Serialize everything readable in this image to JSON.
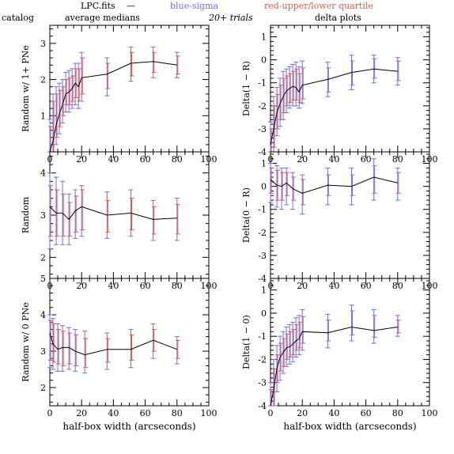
{
  "header": {
    "file_label": "LPC.fits",
    "dash": "—",
    "blue_label": "blue-sigma",
    "red_label": "red-upper/lower quartile",
    "catalog_label": "catalog",
    "avg_label": "average medians",
    "trials_label": "20+ trials",
    "delta_label": "delta plots"
  },
  "colors": {
    "line": "#000000",
    "sigma": "#6f6fe8",
    "quartile": "#e05a5a"
  },
  "xaxis": {
    "label": "half-box width (arcseconds)",
    "ticks": [
      0,
      20,
      40,
      60,
      80,
      100
    ],
    "range": [
      0,
      100
    ]
  },
  "chart_data": [
    {
      "type": "line",
      "ylabel": "Random w/ 1+ PNe",
      "ylim": [
        0,
        3.5
      ],
      "yticks": [
        1,
        2,
        3
      ],
      "x": [
        0,
        2,
        4,
        6,
        8,
        10,
        12,
        14,
        16,
        18,
        20,
        36,
        51,
        65,
        80
      ],
      "y": [
        0.0,
        0.3,
        0.75,
        1.05,
        1.3,
        1.6,
        1.65,
        1.75,
        1.9,
        1.8,
        2.05,
        2.15,
        2.45,
        2.5,
        2.4
      ],
      "sigma": [
        [
          0,
          0.9
        ],
        [
          0,
          1.6
        ],
        [
          0.2,
          1.8
        ],
        [
          0.5,
          1.9
        ],
        [
          0.8,
          2.0
        ],
        [
          1.1,
          2.2
        ],
        [
          1.1,
          2.25
        ],
        [
          1.2,
          2.3
        ],
        [
          1.3,
          2.45
        ],
        [
          1.2,
          2.45
        ],
        [
          1.4,
          2.75
        ],
        [
          1.55,
          2.6
        ],
        [
          1.95,
          2.9
        ],
        [
          2.05,
          2.9
        ],
        [
          2.05,
          2.75
        ]
      ],
      "quartile": [
        [
          0,
          0.7
        ],
        [
          0,
          1.4
        ],
        [
          0.4,
          1.6
        ],
        [
          0.7,
          1.7
        ],
        [
          1.0,
          1.8
        ],
        [
          1.3,
          2.0
        ],
        [
          1.3,
          2.05
        ],
        [
          1.4,
          2.1
        ],
        [
          1.5,
          2.3
        ],
        [
          1.4,
          2.3
        ],
        [
          1.6,
          2.6
        ],
        [
          1.75,
          2.45
        ],
        [
          2.1,
          2.75
        ],
        [
          2.2,
          2.75
        ],
        [
          2.15,
          2.65
        ]
      ]
    },
    {
      "type": "line",
      "ylabel": "Random",
      "ylim": [
        1.5,
        4.5
      ],
      "yticks": [
        2,
        3,
        4
      ],
      "x": [
        0,
        4,
        8,
        12,
        16,
        20,
        36,
        51,
        65,
        80
      ],
      "y": [
        3.2,
        3.05,
        3.05,
        2.9,
        3.1,
        3.2,
        3.0,
        3.05,
        2.9,
        2.93
      ],
      "sigma": [
        [
          2.2,
          4.0
        ],
        [
          2.3,
          3.9
        ],
        [
          2.3,
          3.8
        ],
        [
          2.3,
          3.5
        ],
        [
          2.45,
          3.6
        ],
        [
          2.5,
          3.7
        ],
        [
          2.45,
          3.55
        ],
        [
          2.5,
          3.6
        ],
        [
          2.4,
          3.35
        ],
        [
          2.4,
          3.4
        ]
      ],
      "quartile": [
        [
          2.5,
          3.7
        ],
        [
          2.5,
          3.6
        ],
        [
          2.5,
          3.5
        ],
        [
          2.5,
          3.3
        ],
        [
          2.6,
          3.45
        ],
        [
          2.65,
          3.6
        ],
        [
          2.6,
          3.35
        ],
        [
          2.65,
          3.4
        ],
        [
          2.55,
          3.2
        ],
        [
          2.55,
          3.25
        ]
      ]
    },
    {
      "type": "line",
      "ylabel": "Random w/ 0 PNe",
      "ylim": [
        1.5,
        5
      ],
      "yticks": [
        2,
        3,
        4,
        5
      ],
      "x": [
        0,
        2,
        5,
        8,
        12,
        16,
        22,
        36,
        51,
        65,
        80
      ],
      "y": [
        3.5,
        3.2,
        3.05,
        3.1,
        3.1,
        3.0,
        2.9,
        3.05,
        3.05,
        3.3,
        3.05
      ],
      "sigma": [
        [
          2.55,
          4.0
        ],
        [
          2.5,
          3.9
        ],
        [
          2.45,
          3.75
        ],
        [
          2.45,
          3.7
        ],
        [
          2.5,
          3.65
        ],
        [
          2.45,
          3.6
        ],
        [
          2.4,
          3.55
        ],
        [
          2.5,
          3.5
        ],
        [
          2.55,
          3.6
        ],
        [
          2.8,
          3.75
        ],
        [
          2.65,
          3.4
        ]
      ],
      "quartile": [
        [
          2.75,
          3.85
        ],
        [
          2.7,
          3.75
        ],
        [
          2.65,
          3.6
        ],
        [
          2.6,
          3.55
        ],
        [
          2.65,
          3.5
        ],
        [
          2.6,
          3.45
        ],
        [
          2.55,
          3.35
        ],
        [
          2.7,
          3.35
        ],
        [
          2.75,
          3.45
        ],
        [
          3.0,
          3.6
        ],
        [
          2.8,
          3.3
        ]
      ]
    },
    {
      "type": "line",
      "ylabel": "Delta(1 − R)",
      "ylim": [
        -4,
        1.5
      ],
      "yticks": [
        -4,
        -3,
        -2,
        -1,
        0,
        1
      ],
      "x": [
        0,
        2,
        4,
        6,
        8,
        10,
        12,
        14,
        16,
        18,
        20,
        36,
        51,
        65,
        80
      ],
      "y": [
        -3.7,
        -3.0,
        -2.3,
        -1.9,
        -1.6,
        -1.35,
        -1.25,
        -1.15,
        -1.2,
        -1.4,
        -1.1,
        -0.85,
        -0.55,
        -0.4,
        -0.5
      ],
      "sigma": [
        [
          -4,
          -2.7
        ],
        [
          -4,
          -1.6
        ],
        [
          -3.3,
          -1.2
        ],
        [
          -2.9,
          -0.8
        ],
        [
          -2.6,
          -0.5
        ],
        [
          -2.3,
          -0.4
        ],
        [
          -2.1,
          -0.3
        ],
        [
          -2.0,
          -0.2
        ],
        [
          -2.0,
          -0.1
        ],
        [
          -2.1,
          -0.3
        ],
        [
          -1.9,
          -0.05
        ],
        [
          -1.6,
          -0.1
        ],
        [
          -1.3,
          0.2
        ],
        [
          -1.0,
          0.2
        ],
        [
          -1.1,
          0.1
        ]
      ],
      "quartile": [
        [
          -4,
          -3.0
        ],
        [
          -3.8,
          -2.0
        ],
        [
          -3.0,
          -1.5
        ],
        [
          -2.6,
          -1.1
        ],
        [
          -2.3,
          -0.8
        ],
        [
          -2.0,
          -0.7
        ],
        [
          -1.85,
          -0.6
        ],
        [
          -1.75,
          -0.5
        ],
        [
          -1.75,
          -0.4
        ],
        [
          -1.85,
          -0.6
        ],
        [
          -1.7,
          -0.35
        ],
        [
          -1.4,
          -0.35
        ],
        [
          -1.1,
          -0.05
        ],
        [
          -0.8,
          0.05
        ],
        [
          -0.9,
          -0.05
        ]
      ]
    },
    {
      "type": "line",
      "ylabel": "Delta(0 − R)",
      "ylim": [
        -4,
        1.5
      ],
      "yticks": [
        -4,
        -3,
        -2,
        -1,
        0,
        1
      ],
      "x": [
        0,
        4,
        7,
        10,
        14,
        20,
        36,
        51,
        65,
        80
      ],
      "y": [
        0.3,
        0.05,
        0.0,
        0.15,
        -0.1,
        -0.3,
        0.05,
        0.0,
        0.4,
        0.15
      ],
      "sigma": [
        [
          -0.7,
          1.0
        ],
        [
          -0.9,
          0.9
        ],
        [
          -1.0,
          0.8
        ],
        [
          -0.8,
          0.8
        ],
        [
          -1.0,
          0.6
        ],
        [
          -1.2,
          0.5
        ],
        [
          -0.8,
          0.8
        ],
        [
          -0.8,
          0.8
        ],
        [
          -0.6,
          1.2
        ],
        [
          -0.6,
          0.8
        ]
      ],
      "quartile": [
        [
          -0.3,
          0.8
        ],
        [
          -0.6,
          0.7
        ],
        [
          -0.6,
          0.6
        ],
        [
          -0.4,
          0.6
        ],
        [
          -0.6,
          0.4
        ],
        [
          -0.8,
          0.3
        ],
        [
          -0.4,
          0.5
        ],
        [
          -0.4,
          0.5
        ],
        [
          -0.3,
          0.9
        ],
        [
          -0.3,
          0.6
        ]
      ]
    },
    {
      "type": "line",
      "ylabel": "Delta(1 − 0)",
      "ylim": [
        -4,
        1.5
      ],
      "yticks": [
        -4,
        -3,
        -2,
        -1,
        0,
        1
      ],
      "x": [
        0,
        2,
        4,
        6,
        8,
        10,
        12,
        14,
        16,
        18,
        20,
        36,
        51,
        65,
        80
      ],
      "y": [
        -4.0,
        -3.3,
        -2.4,
        -1.9,
        -1.7,
        -1.5,
        -1.45,
        -1.35,
        -1.2,
        -1.1,
        -0.8,
        -0.85,
        -0.6,
        -0.75,
        -0.6
      ],
      "sigma": [
        [
          -4,
          -3.0
        ],
        [
          -4,
          -2.0
        ],
        [
          -3.4,
          -1.4
        ],
        [
          -2.9,
          -1.0
        ],
        [
          -2.6,
          -0.8
        ],
        [
          -2.3,
          -0.6
        ],
        [
          -2.2,
          -0.5
        ],
        [
          -2.1,
          -0.4
        ],
        [
          -1.9,
          -0.2
        ],
        [
          -1.8,
          -0.1
        ],
        [
          -1.6,
          0.15
        ],
        [
          -1.5,
          -0.05
        ],
        [
          -1.2,
          0.35
        ],
        [
          -1.3,
          0.15
        ],
        [
          -1.0,
          -0.1
        ]
      ],
      "quartile": [
        [
          -4,
          -3.3
        ],
        [
          -4,
          -2.4
        ],
        [
          -3.0,
          -1.8
        ],
        [
          -2.5,
          -1.3
        ],
        [
          -2.3,
          -1.1
        ],
        [
          -2.0,
          -0.9
        ],
        [
          -1.9,
          -0.8
        ],
        [
          -1.8,
          -0.7
        ],
        [
          -1.6,
          -0.5
        ],
        [
          -1.5,
          -0.4
        ],
        [
          -1.3,
          -0.15
        ],
        [
          -1.2,
          -0.3
        ],
        [
          -0.95,
          0.1
        ],
        [
          -1.05,
          -0.1
        ],
        [
          -0.85,
          -0.3
        ]
      ]
    }
  ]
}
